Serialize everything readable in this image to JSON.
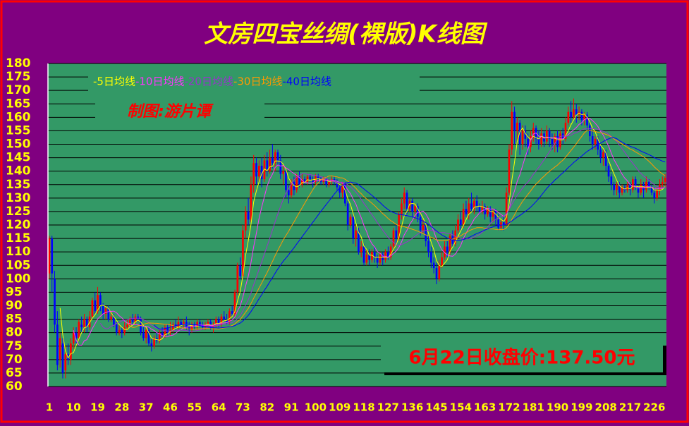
{
  "chart_data": {
    "type": "candlestick",
    "title": "文房四宝丝绸(裸版)K线图",
    "author": "制图:游片谭",
    "note": "6月22日收盘价:137.50元",
    "ylim": [
      60,
      180
    ],
    "yticks": [
      60,
      65,
      70,
      75,
      80,
      85,
      90,
      95,
      100,
      105,
      110,
      115,
      120,
      125,
      130,
      135,
      140,
      145,
      150,
      155,
      160,
      165,
      170,
      175,
      180
    ],
    "xlim": [
      0.5,
      230.5
    ],
    "xticks": [
      1,
      10,
      19,
      28,
      37,
      46,
      55,
      64,
      73,
      82,
      91,
      100,
      109,
      118,
      127,
      136,
      145,
      154,
      163,
      172,
      181,
      190,
      199,
      208,
      217,
      226
    ],
    "grid": true,
    "up_color": "#ff0000",
    "down_color": "#0000ff",
    "series": [
      {
        "name": "-5日均线",
        "color": "#ffff00",
        "period": 5
      },
      {
        "name": "-10日均线",
        "color": "#ff33ff",
        "period": 10
      },
      {
        "name": "-20日均线",
        "color": "#9933cc",
        "period": 20
      },
      {
        "name": "-30日均线",
        "color": "#ff9900",
        "period": 30
      },
      {
        "name": "-40日均线",
        "color": "#0000ff",
        "period": 40
      }
    ],
    "candles": [
      [
        102,
        115,
        116,
        100
      ],
      [
        115,
        102,
        116,
        95
      ],
      [
        100,
        83,
        103,
        80
      ],
      [
        83,
        68,
        88,
        66
      ],
      [
        70,
        78,
        80,
        67
      ],
      [
        76,
        65,
        78,
        63
      ],
      [
        66,
        72,
        75,
        63
      ],
      [
        72,
        70,
        76,
        68
      ],
      [
        70,
        76,
        78,
        68
      ],
      [
        76,
        80,
        82,
        74
      ],
      [
        80,
        78,
        82,
        76
      ],
      [
        78,
        84,
        85,
        77
      ],
      [
        83,
        82,
        86,
        80
      ],
      [
        82,
        85,
        87,
        80
      ],
      [
        85,
        82,
        86,
        80
      ],
      [
        82,
        86,
        88,
        81
      ],
      [
        86,
        92,
        93,
        85
      ],
      [
        92,
        88,
        95,
        87
      ],
      [
        88,
        94,
        97,
        87
      ],
      [
        94,
        90,
        95,
        88
      ],
      [
        90,
        87,
        91,
        85
      ],
      [
        87,
        89,
        90,
        85
      ],
      [
        89,
        85,
        90,
        84
      ],
      [
        85,
        86,
        88,
        84
      ],
      [
        86,
        83,
        87,
        82
      ],
      [
        83,
        80,
        84,
        79
      ],
      [
        80,
        81,
        83,
        79
      ],
      [
        81,
        80,
        82,
        78
      ],
      [
        80,
        82,
        84,
        79
      ],
      [
        82,
        83,
        85,
        81
      ],
      [
        83,
        85,
        86,
        82
      ],
      [
        85,
        84,
        87,
        83
      ],
      [
        84,
        86,
        87,
        83
      ],
      [
        86,
        85,
        87,
        84
      ],
      [
        85,
        80,
        86,
        79
      ],
      [
        80,
        78,
        82,
        77
      ],
      [
        78,
        81,
        82,
        76
      ],
      [
        81,
        76,
        82,
        75
      ],
      [
        76,
        75,
        78,
        73
      ],
      [
        75,
        78,
        79,
        74
      ],
      [
        78,
        77,
        80,
        76
      ],
      [
        77,
        80,
        81,
        76
      ],
      [
        80,
        79,
        82,
        78
      ],
      [
        79,
        82,
        83,
        78
      ],
      [
        82,
        80,
        83,
        79
      ],
      [
        80,
        81,
        84,
        79
      ],
      [
        81,
        83,
        84,
        80
      ],
      [
        83,
        82,
        85,
        81
      ],
      [
        82,
        84,
        86,
        81
      ],
      [
        84,
        83,
        85,
        82
      ],
      [
        83,
        84,
        85,
        82
      ],
      [
        84,
        82,
        86,
        81
      ],
      [
        82,
        81,
        84,
        79
      ],
      [
        81,
        83,
        84,
        80
      ],
      [
        83,
        82,
        84,
        81
      ],
      [
        82,
        84,
        85,
        81
      ],
      [
        84,
        83,
        85,
        82
      ],
      [
        83,
        82,
        84,
        81
      ],
      [
        82,
        83,
        84,
        81
      ],
      [
        83,
        84,
        85,
        82
      ],
      [
        84,
        82,
        85,
        81
      ],
      [
        82,
        83,
        84,
        80
      ],
      [
        83,
        85,
        86,
        82
      ],
      [
        85,
        83,
        86,
        82
      ],
      [
        83,
        86,
        87,
        82
      ],
      [
        86,
        85,
        88,
        84
      ],
      [
        85,
        84,
        87,
        83
      ],
      [
        84,
        88,
        89,
        83
      ],
      [
        88,
        87,
        90,
        86
      ],
      [
        87,
        95,
        96,
        86
      ],
      [
        95,
        105,
        106,
        94
      ],
      [
        105,
        101,
        108,
        100
      ],
      [
        101,
        118,
        120,
        100
      ],
      [
        118,
        125,
        127,
        115
      ],
      [
        125,
        122,
        130,
        120
      ],
      [
        122,
        135,
        138,
        121
      ],
      [
        135,
        143,
        146,
        132
      ],
      [
        143,
        138,
        145,
        135
      ],
      [
        138,
        142,
        144,
        136
      ],
      [
        142,
        137,
        145,
        134
      ],
      [
        137,
        144,
        146,
        136
      ],
      [
        144,
        140,
        147,
        138
      ],
      [
        140,
        145,
        148,
        139
      ],
      [
        145,
        143,
        150,
        141
      ],
      [
        143,
        147,
        148,
        140
      ],
      [
        147,
        144,
        148,
        142
      ],
      [
        144,
        139,
        146,
        137
      ],
      [
        139,
        140,
        142,
        135
      ],
      [
        140,
        133,
        141,
        130
      ],
      [
        133,
        131,
        135,
        128
      ],
      [
        131,
        136,
        137,
        130
      ],
      [
        136,
        133,
        138,
        131
      ],
      [
        133,
        138,
        139,
        132
      ],
      [
        138,
        135,
        140,
        134
      ],
      [
        135,
        137,
        139,
        134
      ],
      [
        137,
        136,
        138,
        135
      ],
      [
        136,
        138,
        139,
        135
      ],
      [
        138,
        137,
        139,
        136
      ],
      [
        137,
        136,
        138,
        134
      ],
      [
        136,
        138,
        139,
        135
      ],
      [
        138,
        137,
        139,
        136
      ],
      [
        137,
        136,
        138,
        135
      ],
      [
        136,
        137,
        138,
        135
      ],
      [
        137,
        135,
        138,
        134
      ],
      [
        135,
        136,
        137,
        134
      ],
      [
        136,
        137,
        138,
        135
      ],
      [
        137,
        136,
        138,
        135
      ],
      [
        136,
        134,
        137,
        133
      ],
      [
        134,
        132,
        135,
        130
      ],
      [
        132,
        135,
        136,
        130
      ],
      [
        135,
        128,
        136,
        127
      ],
      [
        128,
        120,
        129,
        118
      ],
      [
        120,
        123,
        124,
        119
      ],
      [
        123,
        115,
        124,
        113
      ],
      [
        115,
        118,
        120,
        112
      ],
      [
        118,
        110,
        119,
        109
      ],
      [
        110,
        112,
        114,
        108
      ],
      [
        112,
        106,
        113,
        105
      ],
      [
        106,
        109,
        111,
        105
      ],
      [
        109,
        107,
        111,
        105
      ],
      [
        107,
        110,
        111,
        106
      ],
      [
        110,
        108,
        112,
        106
      ],
      [
        108,
        106,
        109,
        104
      ],
      [
        106,
        109,
        110,
        105
      ],
      [
        109,
        107,
        110,
        105
      ],
      [
        107,
        110,
        111,
        106
      ],
      [
        110,
        108,
        112,
        107
      ],
      [
        108,
        112,
        113,
        107
      ],
      [
        112,
        118,
        119,
        111
      ],
      [
        118,
        115,
        120,
        113
      ],
      [
        115,
        124,
        125,
        114
      ],
      [
        124,
        128,
        130,
        122
      ],
      [
        128,
        132,
        134,
        126
      ],
      [
        132,
        126,
        133,
        124
      ],
      [
        126,
        129,
        130,
        125
      ],
      [
        129,
        125,
        130,
        123
      ],
      [
        125,
        127,
        128,
        122
      ],
      [
        127,
        123,
        128,
        121
      ],
      [
        123,
        118,
        124,
        116
      ],
      [
        118,
        120,
        122,
        117
      ],
      [
        120,
        114,
        121,
        112
      ],
      [
        114,
        110,
        116,
        108
      ],
      [
        110,
        106,
        112,
        104
      ],
      [
        106,
        104,
        108,
        102
      ],
      [
        104,
        100,
        106,
        98
      ],
      [
        100,
        105,
        107,
        99
      ],
      [
        105,
        108,
        110,
        104
      ],
      [
        108,
        112,
        114,
        107
      ],
      [
        112,
        110,
        114,
        108
      ],
      [
        110,
        116,
        117,
        109
      ],
      [
        116,
        113,
        118,
        112
      ],
      [
        113,
        118,
        120,
        112
      ],
      [
        118,
        122,
        124,
        117
      ],
      [
        122,
        120,
        125,
        118
      ],
      [
        120,
        126,
        128,
        119
      ],
      [
        126,
        124,
        129,
        123
      ],
      [
        124,
        128,
        130,
        122
      ],
      [
        128,
        126,
        132,
        125
      ],
      [
        126,
        129,
        130,
        124
      ],
      [
        129,
        127,
        131,
        125
      ],
      [
        127,
        125,
        128,
        124
      ],
      [
        125,
        127,
        129,
        124
      ],
      [
        127,
        124,
        128,
        122
      ],
      [
        124,
        126,
        127,
        123
      ],
      [
        126,
        123,
        127,
        121
      ],
      [
        123,
        125,
        126,
        121
      ],
      [
        125,
        122,
        126,
        120
      ],
      [
        122,
        119,
        124,
        118
      ],
      [
        119,
        121,
        122,
        118
      ],
      [
        121,
        120,
        123,
        118
      ],
      [
        120,
        132,
        134,
        120
      ],
      [
        132,
        148,
        150,
        131
      ],
      [
        148,
        162,
        166,
        146
      ],
      [
        162,
        155,
        164,
        150
      ],
      [
        155,
        158,
        160,
        150
      ],
      [
        158,
        150,
        159,
        146
      ],
      [
        150,
        155,
        157,
        148
      ],
      [
        155,
        152,
        157,
        149
      ],
      [
        152,
        149,
        154,
        146
      ],
      [
        149,
        153,
        155,
        147
      ],
      [
        153,
        156,
        158,
        151
      ],
      [
        156,
        152,
        157,
        150
      ],
      [
        152,
        150,
        155,
        148
      ],
      [
        150,
        154,
        156,
        149
      ],
      [
        154,
        151,
        155,
        149
      ],
      [
        151,
        155,
        157,
        150
      ],
      [
        155,
        152,
        156,
        149
      ],
      [
        152,
        150,
        154,
        148
      ],
      [
        150,
        153,
        154,
        147
      ],
      [
        153,
        149,
        155,
        147
      ],
      [
        149,
        154,
        155,
        148
      ],
      [
        154,
        152,
        156,
        150
      ],
      [
        152,
        158,
        160,
        151
      ],
      [
        158,
        162,
        164,
        157
      ],
      [
        162,
        160,
        166,
        158
      ],
      [
        160,
        163,
        167,
        159
      ],
      [
        163,
        161,
        165,
        158
      ],
      [
        161,
        162,
        164,
        159
      ],
      [
        162,
        159,
        163,
        157
      ],
      [
        159,
        161,
        162,
        157
      ],
      [
        161,
        157,
        162,
        155
      ],
      [
        157,
        153,
        158,
        151
      ],
      [
        153,
        150,
        155,
        148
      ],
      [
        150,
        152,
        153,
        148
      ],
      [
        152,
        148,
        153,
        146
      ],
      [
        148,
        145,
        150,
        143
      ],
      [
        145,
        147,
        148,
        142
      ],
      [
        147,
        142,
        148,
        140
      ],
      [
        142,
        138,
        143,
        136
      ],
      [
        138,
        135,
        139,
        133
      ],
      [
        135,
        133,
        136,
        131
      ],
      [
        133,
        135,
        136,
        131
      ],
      [
        135,
        132,
        136,
        130
      ],
      [
        132,
        134,
        135,
        131
      ],
      [
        134,
        133,
        135,
        132
      ],
      [
        133,
        135,
        136,
        132
      ],
      [
        135,
        133,
        136,
        131
      ],
      [
        133,
        137,
        138,
        132
      ],
      [
        137,
        134,
        138,
        133
      ],
      [
        134,
        132,
        135,
        130
      ],
      [
        132,
        135,
        137,
        131
      ],
      [
        135,
        133,
        136,
        130
      ],
      [
        133,
        136,
        138,
        132
      ],
      [
        136,
        134,
        137,
        133
      ],
      [
        134,
        132,
        135,
        131
      ],
      [
        132,
        130,
        134,
        128
      ],
      [
        130,
        133,
        134,
        129
      ],
      [
        133,
        135,
        137,
        131
      ],
      [
        135,
        136,
        138,
        134
      ],
      [
        136,
        137.5,
        139,
        134
      ]
    ]
  }
}
